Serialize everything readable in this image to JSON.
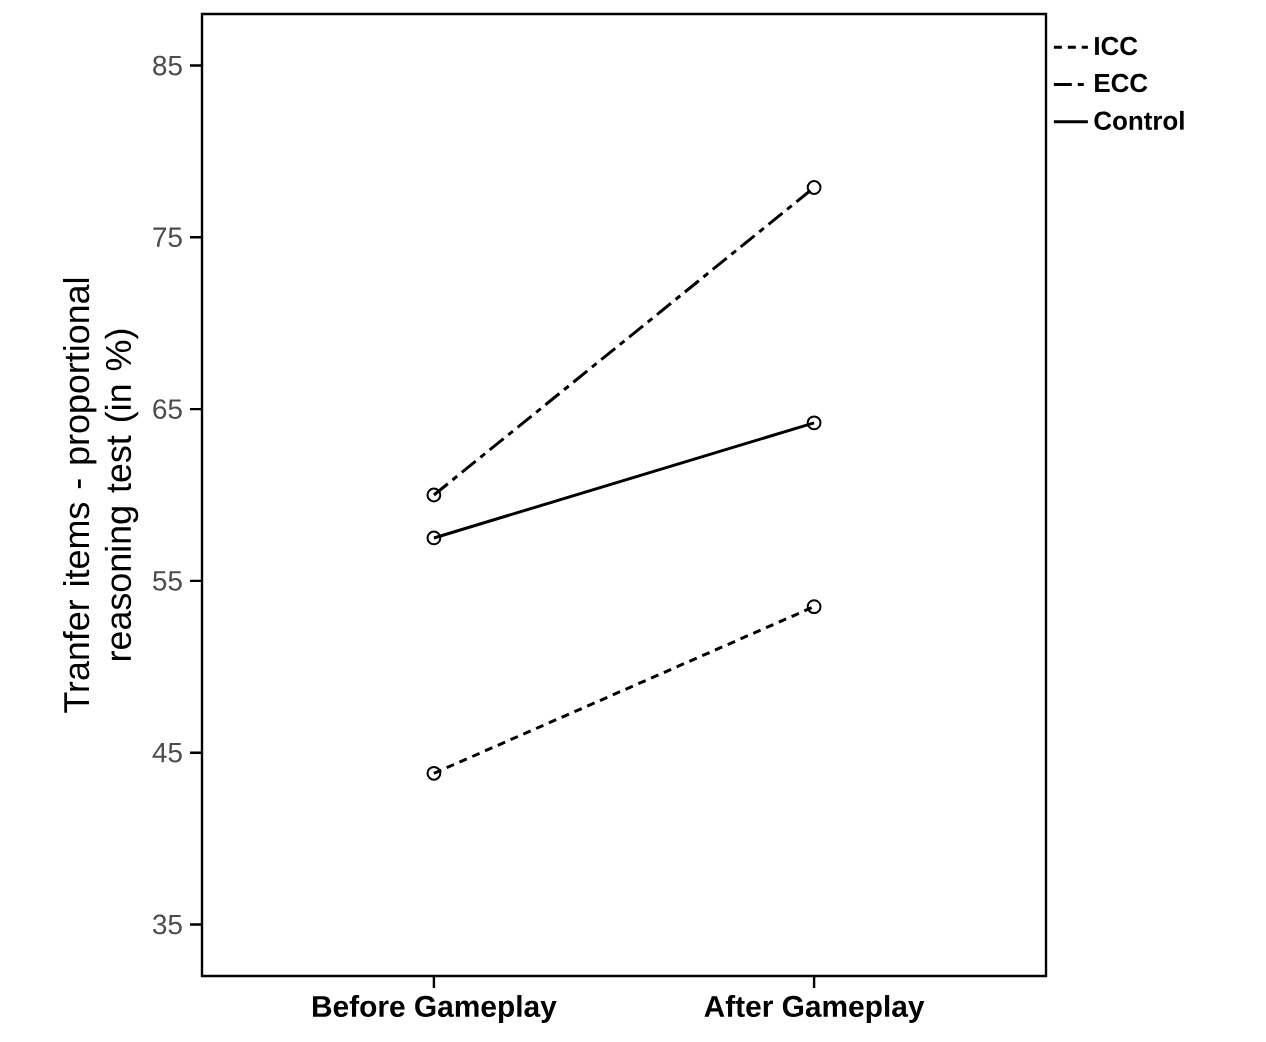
{
  "chart_data": {
    "type": "line",
    "ylabel": "Tranfer items - proportional reasoning test (in %)",
    "categories": [
      "Before Gameplay",
      "After Gameplay"
    ],
    "series": [
      {
        "name": "ICC",
        "color": "#000000",
        "line_style": "dashed",
        "values": [
          43.8,
          53.5
        ]
      },
      {
        "name": "ECC",
        "color": "#000000",
        "line_style": "dashdot",
        "values": [
          60.0,
          77.9
        ]
      },
      {
        "name": "Control",
        "color": "#000000",
        "line_style": "solid",
        "values": [
          57.5,
          64.2
        ]
      }
    ],
    "ylim": [
      32,
      88
    ],
    "yticks": [
      35,
      45,
      55,
      65,
      75,
      85
    ],
    "grid": false,
    "legend": "top right",
    "marker": "circle"
  }
}
